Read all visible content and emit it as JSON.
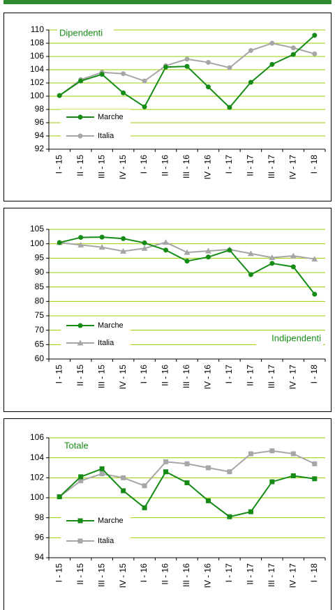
{
  "chart_data": [
    {
      "type": "line",
      "title": "Dipendenti",
      "categories": [
        "I - 15",
        "II - 15",
        "III - 15",
        "IV - 15",
        "I - 16",
        "II - 16",
        "III - 16",
        "IV - 16",
        "I - 17",
        "II - 17",
        "III - 17",
        "IV - 17",
        "I - 18"
      ],
      "series": [
        {
          "name": "Marche",
          "color": "#168c16",
          "marker": "circle",
          "values": [
            100.1,
            102.3,
            103.3,
            100.5,
            98.4,
            104.4,
            104.5,
            101.4,
            98.3,
            102.1,
            104.8,
            106.3,
            109.2
          ]
        },
        {
          "name": "Italia",
          "color": "#a6a6a6",
          "marker": "circle",
          "values": [
            100.1,
            102.5,
            103.6,
            103.4,
            102.3,
            104.6,
            105.6,
            105.1,
            104.3,
            106.9,
            108.0,
            107.3,
            106.4
          ]
        }
      ],
      "ylim": [
        92,
        110
      ],
      "yticks": [
        92,
        94,
        96,
        98,
        100,
        102,
        104,
        106,
        108,
        110
      ],
      "grid": true,
      "legend": "lower left"
    },
    {
      "type": "line",
      "title": "Indipendenti",
      "categories": [
        "I - 15",
        "II - 15",
        "III - 15",
        "IV - 15",
        "I - 16",
        "II - 16",
        "III - 16",
        "IV - 16",
        "I - 17",
        "II - 17",
        "III - 17",
        "IV - 17",
        "I - 18"
      ],
      "series": [
        {
          "name": "Marche",
          "color": "#168c16",
          "marker": "circle",
          "values": [
            100.4,
            102.2,
            102.3,
            101.8,
            100.3,
            97.8,
            94.0,
            95.4,
            97.8,
            89.3,
            93.2,
            92.0,
            82.5
          ]
        },
        {
          "name": "Italia",
          "color": "#a6a6a6",
          "marker": "triangle",
          "values": [
            100.4,
            99.6,
            98.8,
            97.4,
            98.4,
            100.5,
            97.0,
            97.5,
            98.0,
            96.6,
            95.2,
            95.8,
            94.7
          ]
        }
      ],
      "ylim": [
        60,
        105
      ],
      "yticks": [
        60,
        65,
        70,
        75,
        80,
        85,
        90,
        95,
        100,
        105
      ],
      "grid": true,
      "legend": "lower left"
    },
    {
      "type": "line",
      "title": "Totale",
      "categories": [
        "I - 15",
        "II - 15",
        "III - 15",
        "IV - 15",
        "I - 16",
        "II - 16",
        "III - 16",
        "IV - 16",
        "I - 17",
        "II - 17",
        "III - 17",
        "IV - 17",
        "I - 18"
      ],
      "series": [
        {
          "name": "Marche",
          "color": "#168c16",
          "marker": "square",
          "values": [
            100.1,
            102.1,
            102.9,
            100.7,
            99.0,
            102.6,
            101.5,
            99.7,
            98.1,
            98.6,
            101.6,
            102.2,
            101.9
          ]
        },
        {
          "name": "Italia",
          "color": "#a6a6a6",
          "marker": "square",
          "values": [
            100.1,
            101.7,
            102.4,
            102.0,
            101.2,
            103.6,
            103.4,
            103.0,
            102.6,
            104.4,
            104.7,
            104.4,
            103.4
          ]
        }
      ],
      "ylim": [
        94,
        106
      ],
      "yticks": [
        94,
        96,
        98,
        100,
        102,
        104,
        106
      ],
      "grid": true,
      "legend": "lower left"
    }
  ]
}
